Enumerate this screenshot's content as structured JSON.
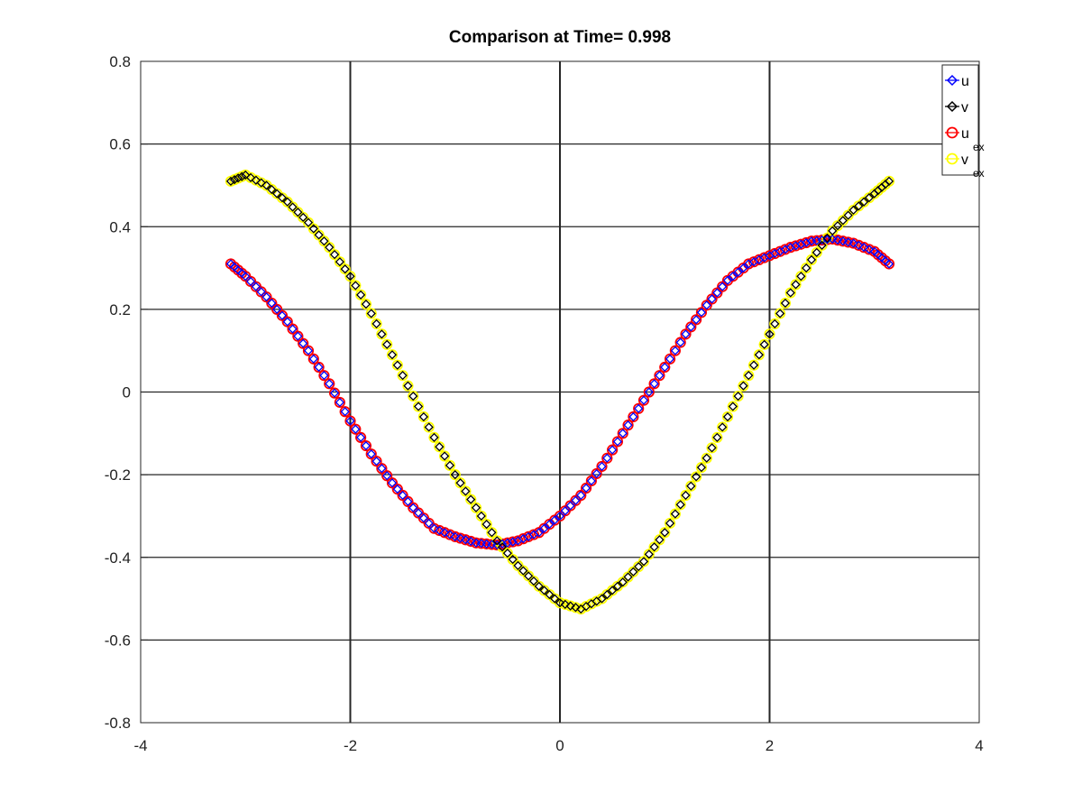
{
  "chart_data": {
    "type": "scatter",
    "title": "Comparison at Time= 0.998",
    "xlabel": "",
    "ylabel": "",
    "xlim": [
      -4,
      4
    ],
    "ylim": [
      -0.8,
      0.8
    ],
    "x_ticks": [
      -4,
      -2,
      0,
      2,
      4
    ],
    "y_ticks": [
      -0.8,
      -0.6,
      -0.4,
      -0.2,
      0,
      0.2,
      0.4,
      0.6,
      0.8
    ],
    "x_tick_labels": [
      "-4",
      "-2",
      "0",
      "2",
      "4"
    ],
    "y_tick_labels": [
      "-0.8",
      "-0.6",
      "-0.4",
      "-0.2",
      "0",
      "0.2",
      "0.4",
      "0.6",
      "0.8"
    ],
    "grid": true,
    "legend_position": "top-right",
    "legend": [
      {
        "base": "u",
        "sub": "",
        "marker": "diamond",
        "color": "#0000ff"
      },
      {
        "base": "v",
        "sub": "",
        "marker": "diamond",
        "color": "#000000"
      },
      {
        "base": "u",
        "sub": "ex",
        "marker": "circle",
        "color": "#ff0000"
      },
      {
        "base": "v",
        "sub": "ex",
        "marker": "circle",
        "color": "#ffff00"
      }
    ],
    "series": [
      {
        "name": "u",
        "marker": "diamond",
        "color": "#0000ff",
        "x": [
          -3.14,
          -3.0,
          -2.8,
          -2.6,
          -2.4,
          -2.2,
          -2.0,
          -1.8,
          -1.6,
          -1.4,
          -1.2,
          -1.0,
          -0.8,
          -0.6,
          -0.4,
          -0.2,
          0.0,
          0.2,
          0.4,
          0.6,
          0.8,
          1.0,
          1.2,
          1.4,
          1.6,
          1.8,
          2.0,
          2.2,
          2.4,
          2.6,
          2.8,
          3.0,
          3.14
        ],
        "y": [
          0.31,
          0.28,
          0.23,
          0.17,
          0.1,
          0.02,
          -0.07,
          -0.15,
          -0.22,
          -0.28,
          -0.33,
          -0.35,
          -0.365,
          -0.37,
          -0.36,
          -0.34,
          -0.3,
          -0.25,
          -0.18,
          -0.1,
          -0.02,
          0.06,
          0.14,
          0.21,
          0.27,
          0.31,
          0.33,
          0.35,
          0.365,
          0.37,
          0.36,
          0.34,
          0.31
        ]
      },
      {
        "name": "v",
        "marker": "diamond",
        "color": "#000000",
        "x": [
          -3.14,
          -3.0,
          -2.8,
          -2.6,
          -2.4,
          -2.2,
          -2.0,
          -1.8,
          -1.6,
          -1.4,
          -1.2,
          -1.0,
          -0.8,
          -0.6,
          -0.4,
          -0.2,
          0.0,
          0.2,
          0.4,
          0.6,
          0.8,
          1.0,
          1.2,
          1.4,
          1.6,
          1.8,
          2.0,
          2.2,
          2.4,
          2.6,
          2.8,
          3.0,
          3.14
        ],
        "y": [
          0.51,
          0.525,
          0.5,
          0.46,
          0.41,
          0.35,
          0.28,
          0.19,
          0.09,
          -0.01,
          -0.11,
          -0.2,
          -0.28,
          -0.36,
          -0.42,
          -0.47,
          -0.51,
          -0.525,
          -0.5,
          -0.46,
          -0.41,
          -0.34,
          -0.25,
          -0.16,
          -0.06,
          0.04,
          0.14,
          0.24,
          0.32,
          0.39,
          0.44,
          0.48,
          0.51
        ]
      },
      {
        "name": "u_ex",
        "marker": "circle",
        "color": "#ff0000",
        "x": [
          -3.14,
          -3.0,
          -2.8,
          -2.6,
          -2.4,
          -2.2,
          -2.0,
          -1.8,
          -1.6,
          -1.4,
          -1.2,
          -1.0,
          -0.8,
          -0.6,
          -0.4,
          -0.2,
          0.0,
          0.2,
          0.4,
          0.6,
          0.8,
          1.0,
          1.2,
          1.4,
          1.6,
          1.8,
          2.0,
          2.2,
          2.4,
          2.6,
          2.8,
          3.0,
          3.14
        ],
        "y": [
          0.31,
          0.28,
          0.23,
          0.17,
          0.1,
          0.02,
          -0.07,
          -0.15,
          -0.22,
          -0.28,
          -0.33,
          -0.35,
          -0.365,
          -0.37,
          -0.36,
          -0.34,
          -0.3,
          -0.25,
          -0.18,
          -0.1,
          -0.02,
          0.06,
          0.14,
          0.21,
          0.27,
          0.31,
          0.33,
          0.35,
          0.365,
          0.37,
          0.36,
          0.34,
          0.31
        ]
      },
      {
        "name": "v_ex",
        "marker": "circle",
        "color": "#ffff00",
        "x": [
          -3.14,
          -3.0,
          -2.8,
          -2.6,
          -2.4,
          -2.2,
          -2.0,
          -1.8,
          -1.6,
          -1.4,
          -1.2,
          -1.0,
          -0.8,
          -0.6,
          -0.4,
          -0.2,
          0.0,
          0.2,
          0.4,
          0.6,
          0.8,
          1.0,
          1.2,
          1.4,
          1.6,
          1.8,
          2.0,
          2.2,
          2.4,
          2.6,
          2.8,
          3.0,
          3.14
        ],
        "y": [
          0.51,
          0.525,
          0.5,
          0.46,
          0.41,
          0.35,
          0.28,
          0.19,
          0.09,
          -0.01,
          -0.11,
          -0.2,
          -0.28,
          -0.36,
          -0.42,
          -0.47,
          -0.51,
          -0.525,
          -0.5,
          -0.46,
          -0.41,
          -0.34,
          -0.25,
          -0.16,
          -0.06,
          0.04,
          0.14,
          0.24,
          0.32,
          0.39,
          0.44,
          0.48,
          0.51
        ]
      }
    ]
  }
}
